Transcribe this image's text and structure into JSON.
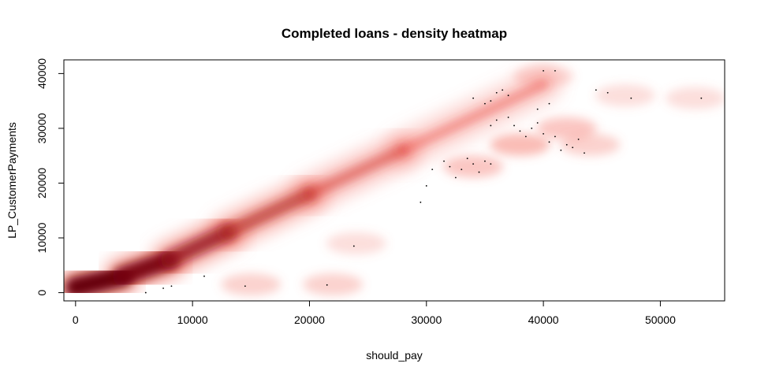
{
  "chart_data": {
    "type": "heatmap",
    "title": "Completed loans - density heatmap",
    "xlabel": "should_pay",
    "ylabel": "LP_CustomerPayments",
    "xlim": [
      -1000,
      55500
    ],
    "ylim": [
      -1500,
      42500
    ],
    "x_ticks": [
      0,
      10000,
      20000,
      30000,
      40000,
      50000
    ],
    "y_ticks": [
      0,
      10000,
      20000,
      30000,
      40000
    ],
    "x_tick_labels": [
      "0",
      "10000",
      "20000",
      "30000",
      "40000",
      "50000"
    ],
    "y_tick_labels": [
      "0",
      "10000",
      "20000",
      "30000",
      "40000"
    ],
    "colors": {
      "low": "#fff5f0",
      "mid": "#ef3b2c",
      "high": "#67000d"
    },
    "density_ridges": [
      {
        "x0": 0,
        "y0": 1000,
        "x1": 4000,
        "y1": 3000,
        "intensity": 1.0
      },
      {
        "x0": 4000,
        "y0": 3000,
        "x1": 8000,
        "y1": 6000,
        "intensity": 0.9
      },
      {
        "x0": 8000,
        "y0": 6000,
        "x1": 13000,
        "y1": 11000,
        "intensity": 0.7
      },
      {
        "x0": 13000,
        "y0": 11000,
        "x1": 20000,
        "y1": 18000,
        "intensity": 0.5
      },
      {
        "x0": 20000,
        "y0": 18000,
        "x1": 28000,
        "y1": 26000,
        "intensity": 0.3
      },
      {
        "x0": 28000,
        "y0": 26000,
        "x1": 40000,
        "y1": 38000,
        "intensity": 0.15
      }
    ],
    "faint_blobs": [
      {
        "x": 15000,
        "y": 1500,
        "intensity": 0.08
      },
      {
        "x": 22000,
        "y": 1500,
        "intensity": 0.08
      },
      {
        "x": 24000,
        "y": 9000,
        "intensity": 0.06
      },
      {
        "x": 34000,
        "y": 23000,
        "intensity": 0.1
      },
      {
        "x": 38000,
        "y": 27000,
        "intensity": 0.12
      },
      {
        "x": 42000,
        "y": 30000,
        "intensity": 0.1
      },
      {
        "x": 44000,
        "y": 27000,
        "intensity": 0.08
      },
      {
        "x": 47000,
        "y": 36000,
        "intensity": 0.06
      },
      {
        "x": 53000,
        "y": 35500,
        "intensity": 0.06
      },
      {
        "x": 40000,
        "y": 39500,
        "intensity": 0.07
      }
    ],
    "outlier_points": [
      [
        6000,
        0
      ],
      [
        7500,
        800
      ],
      [
        8200,
        1200
      ],
      [
        11000,
        3000
      ],
      [
        14500,
        1200
      ],
      [
        21500,
        1400
      ],
      [
        23800,
        8500
      ],
      [
        29500,
        16500
      ],
      [
        30000,
        19500
      ],
      [
        30500,
        22500
      ],
      [
        31500,
        24000
      ],
      [
        32000,
        23000
      ],
      [
        32500,
        21000
      ],
      [
        33000,
        22500
      ],
      [
        33500,
        24500
      ],
      [
        34000,
        23500
      ],
      [
        34500,
        22000
      ],
      [
        35000,
        24000
      ],
      [
        35500,
        23500
      ],
      [
        34000,
        35500
      ],
      [
        35000,
        34500
      ],
      [
        35500,
        35000
      ],
      [
        36000,
        36500
      ],
      [
        36500,
        37000
      ],
      [
        37000,
        36000
      ],
      [
        35500,
        30500
      ],
      [
        36000,
        31500
      ],
      [
        37000,
        32000
      ],
      [
        37500,
        30500
      ],
      [
        38000,
        29500
      ],
      [
        38500,
        28500
      ],
      [
        39000,
        30000
      ],
      [
        39500,
        31000
      ],
      [
        40000,
        29000
      ],
      [
        40500,
        27500
      ],
      [
        41000,
        28500
      ],
      [
        41500,
        26000
      ],
      [
        42000,
        27000
      ],
      [
        42500,
        26500
      ],
      [
        43000,
        28000
      ],
      [
        43500,
        25500
      ],
      [
        40000,
        40500
      ],
      [
        41000,
        40500
      ],
      [
        44500,
        37000
      ],
      [
        45500,
        36500
      ],
      [
        47500,
        35500
      ],
      [
        53500,
        35500
      ],
      [
        39500,
        33500
      ],
      [
        40500,
        34500
      ]
    ]
  }
}
